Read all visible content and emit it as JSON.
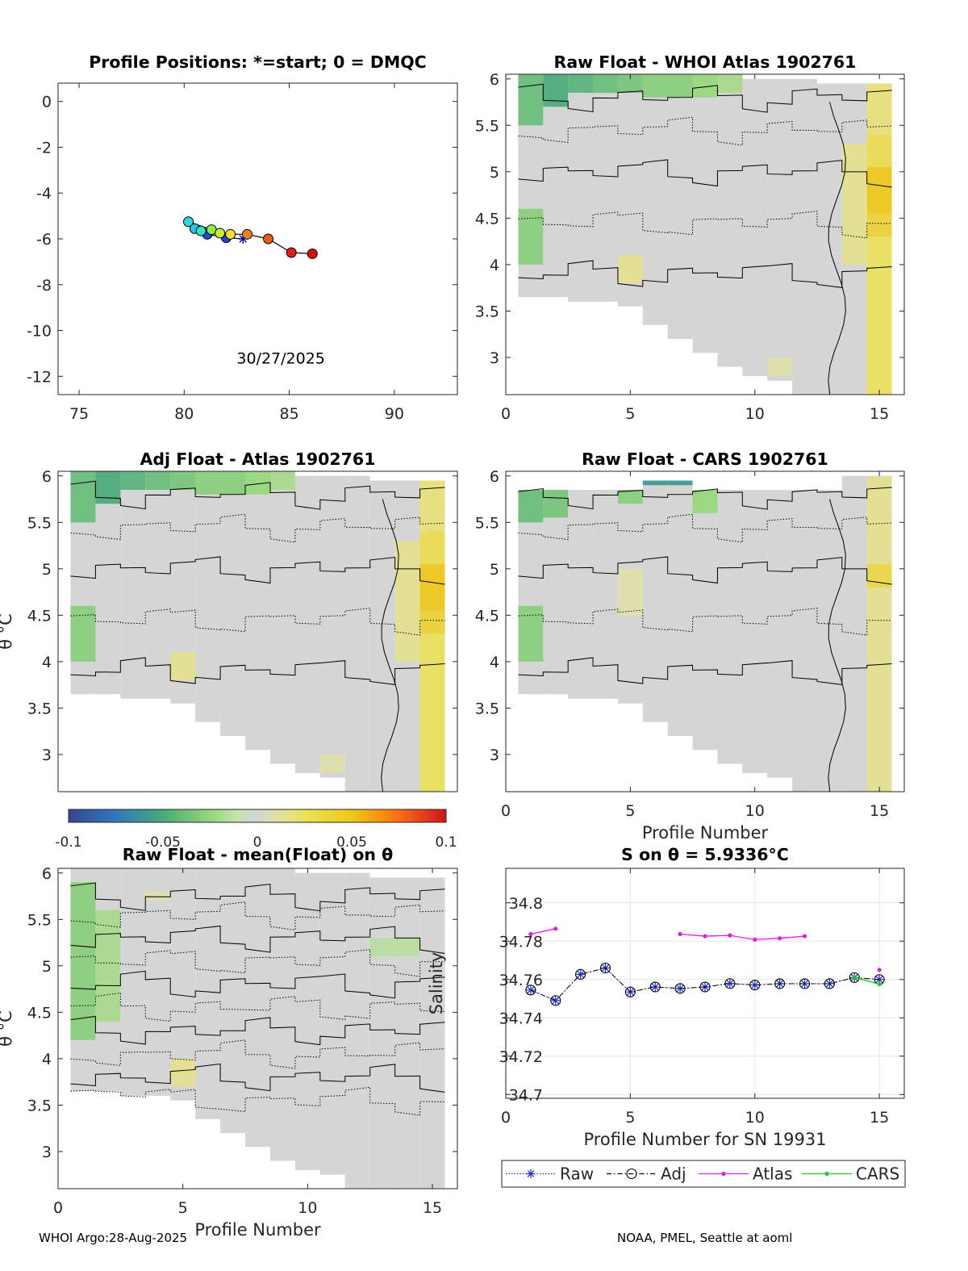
{
  "footer": {
    "left": "WHOI Argo:28-Aug-2025",
    "right": "NOAA, PMEL, Seattle at aoml"
  },
  "colors": {
    "raw": "#1f2fd6",
    "adj": "#000000",
    "atlas": "#e619e6",
    "cars": "#1acc1a",
    "gray": "#d5d5d5"
  },
  "chart_data": [
    {
      "id": "positions",
      "type": "scatter",
      "title": "Profile Positions: *=start; 0 = DMQC",
      "xlabel": "",
      "ylabel": "",
      "xlim": [
        74,
        93
      ],
      "ylim": [
        -12.8,
        0.8
      ],
      "xticks": [
        75,
        80,
        85,
        90
      ],
      "yticks": [
        0,
        -2,
        -4,
        -6,
        -8,
        -10,
        -12
      ],
      "annotation": "30/27/2025",
      "points": [
        {
          "lon": 82.8,
          "lat": -6.0,
          "color": "#0000cc",
          "marker": "star"
        },
        {
          "lon": 82.0,
          "lat": -5.95,
          "color": "#1f3fe0"
        },
        {
          "lon": 81.1,
          "lat": -5.8,
          "color": "#1f4be0"
        },
        {
          "lon": 80.5,
          "lat": -5.55,
          "color": "#1ec8e8"
        },
        {
          "lon": 80.8,
          "lat": -5.65,
          "color": "#30e0c0"
        },
        {
          "lon": 80.2,
          "lat": -5.25,
          "color": "#28d8e8"
        },
        {
          "lon": 81.3,
          "lat": -5.6,
          "color": "#90ee40"
        },
        {
          "lon": 81.7,
          "lat": -5.75,
          "color": "#c8f030"
        },
        {
          "lon": 82.2,
          "lat": -5.8,
          "color": "#f0e030"
        },
        {
          "lon": 83.0,
          "lat": -5.8,
          "color": "#f08020"
        },
        {
          "lon": 84.0,
          "lat": -6.0,
          "color": "#ee5a10"
        },
        {
          "lon": 85.1,
          "lat": -6.6,
          "color": "#e02010"
        },
        {
          "lon": 86.1,
          "lat": -6.65,
          "color": "#d80c0c"
        }
      ]
    },
    {
      "id": "raw-atlas",
      "type": "heatmap",
      "title": "Raw Float - WHOI Atlas  1902761",
      "xlabel": "",
      "ylabel": "",
      "xlim": [
        0,
        16
      ],
      "ylim": [
        2.6,
        6.05
      ],
      "xticks": [
        0,
        5,
        10,
        15
      ],
      "yticks": [
        3,
        3.5,
        4,
        4.5,
        5,
        5.5,
        6
      ],
      "columns": [
        1,
        2,
        3,
        4,
        5,
        6,
        7,
        8,
        9,
        10,
        11,
        12,
        13,
        14,
        15
      ],
      "col_bottom": [
        3.65,
        3.65,
        3.6,
        3.6,
        3.55,
        3.35,
        3.2,
        3.05,
        2.9,
        2.8,
        2.75,
        2.6,
        2.6,
        2.6,
        2.6
      ],
      "col_top": [
        6.05,
        6.05,
        6.05,
        6.05,
        6.05,
        6.05,
        6.05,
        6.05,
        6.05,
        6.0,
        6.0,
        6.0,
        5.95,
        5.95,
        5.95
      ],
      "features": [
        {
          "col": 15,
          "from": 4.55,
          "to": 5.05,
          "value": 0.05
        },
        {
          "col": 15,
          "from": 4.3,
          "to": 4.55,
          "value": 0.04
        },
        {
          "col": 15,
          "from": 5.05,
          "to": 5.4,
          "value": 0.03
        },
        {
          "col": 15,
          "from": 2.6,
          "to": 4.3,
          "value": 0.025
        },
        {
          "col": 15,
          "from": 5.4,
          "to": 5.95,
          "value": 0.02
        },
        {
          "col": 14,
          "from": 4.0,
          "to": 5.3,
          "value": 0.015
        },
        {
          "col": 1,
          "from": 5.5,
          "to": 6.05,
          "value": -0.04
        },
        {
          "col": 2,
          "from": 5.7,
          "to": 6.05,
          "value": -0.05
        },
        {
          "col": 3,
          "from": 5.85,
          "to": 6.05,
          "value": -0.045
        },
        {
          "col": 4,
          "from": 5.85,
          "to": 6.05,
          "value": -0.04
        },
        {
          "col": 5,
          "from": 5.85,
          "to": 6.05,
          "value": -0.035
        },
        {
          "col": 6,
          "from": 5.8,
          "to": 6.05,
          "value": -0.03
        },
        {
          "col": 7,
          "from": 5.8,
          "to": 6.05,
          "value": -0.03
        },
        {
          "col": 8,
          "from": 5.8,
          "to": 6.05,
          "value": -0.025
        },
        {
          "col": 9,
          "from": 5.85,
          "to": 6.05,
          "value": -0.02
        },
        {
          "col": 1,
          "from": 4.0,
          "to": 4.6,
          "value": -0.03
        },
        {
          "col": 5,
          "from": 3.8,
          "to": 4.1,
          "value": 0.015
        },
        {
          "col": 11,
          "from": 2.8,
          "to": 3.0,
          "value": 0.01
        }
      ]
    },
    {
      "id": "adj-atlas",
      "type": "heatmap",
      "title": "Adj Float - Atlas  1902761",
      "xlabel": "",
      "ylabel": "θ °C",
      "xlim": [
        0,
        16
      ],
      "ylim": [
        2.6,
        6.05
      ],
      "xticks": [],
      "yticks": [
        3,
        3.5,
        4,
        4.5,
        5,
        5.5,
        6
      ],
      "columns": [
        1,
        2,
        3,
        4,
        5,
        6,
        7,
        8,
        9,
        10,
        11,
        12,
        13,
        14,
        15
      ],
      "col_bottom": [
        3.65,
        3.65,
        3.6,
        3.6,
        3.55,
        3.35,
        3.2,
        3.05,
        2.9,
        2.8,
        2.75,
        2.6,
        2.6,
        2.6,
        2.6
      ],
      "col_top": [
        6.05,
        6.05,
        6.05,
        6.05,
        6.05,
        6.05,
        6.05,
        6.05,
        6.05,
        6.0,
        6.0,
        6.0,
        5.95,
        5.95,
        5.95
      ],
      "features": [
        {
          "col": 15,
          "from": 4.55,
          "to": 5.05,
          "value": 0.05
        },
        {
          "col": 15,
          "from": 4.3,
          "to": 4.55,
          "value": 0.04
        },
        {
          "col": 15,
          "from": 5.05,
          "to": 5.4,
          "value": 0.03
        },
        {
          "col": 15,
          "from": 2.6,
          "to": 4.3,
          "value": 0.025
        },
        {
          "col": 15,
          "from": 5.4,
          "to": 5.95,
          "value": 0.02
        },
        {
          "col": 14,
          "from": 4.0,
          "to": 5.3,
          "value": 0.015
        },
        {
          "col": 1,
          "from": 5.5,
          "to": 6.05,
          "value": -0.04
        },
        {
          "col": 2,
          "from": 5.7,
          "to": 6.05,
          "value": -0.05
        },
        {
          "col": 3,
          "from": 5.85,
          "to": 6.05,
          "value": -0.045
        },
        {
          "col": 4,
          "from": 5.85,
          "to": 6.05,
          "value": -0.04
        },
        {
          "col": 5,
          "from": 5.85,
          "to": 6.05,
          "value": -0.035
        },
        {
          "col": 6,
          "from": 5.8,
          "to": 6.05,
          "value": -0.03
        },
        {
          "col": 7,
          "from": 5.8,
          "to": 6.05,
          "value": -0.03
        },
        {
          "col": 8,
          "from": 5.8,
          "to": 6.05,
          "value": -0.025
        },
        {
          "col": 9,
          "from": 5.85,
          "to": 6.05,
          "value": -0.02
        },
        {
          "col": 1,
          "from": 4.0,
          "to": 4.6,
          "value": -0.03
        },
        {
          "col": 5,
          "from": 3.8,
          "to": 4.1,
          "value": 0.015
        },
        {
          "col": 11,
          "from": 2.8,
          "to": 3.0,
          "value": 0.01
        }
      ]
    },
    {
      "id": "raw-cars",
      "type": "heatmap",
      "title": "Raw Float - CARS  1902761",
      "xlabel": "Profile Number",
      "ylabel": "",
      "xlim": [
        0,
        16
      ],
      "ylim": [
        2.6,
        6.05
      ],
      "xticks": [
        0,
        5,
        10,
        15
      ],
      "yticks": [
        3,
        3.5,
        4,
        4.5,
        5,
        5.5,
        6
      ],
      "columns": [
        1,
        2,
        3,
        4,
        5,
        6,
        7,
        8,
        9,
        10,
        11,
        12,
        13,
        14,
        15
      ],
      "col_bottom": [
        3.65,
        3.65,
        3.6,
        3.6,
        3.55,
        3.35,
        3.2,
        3.05,
        2.9,
        2.8,
        2.75,
        2.6,
        2.6,
        2.6,
        2.6
      ],
      "col_top": [
        5.85,
        5.85,
        5.85,
        5.85,
        5.85,
        5.95,
        5.95,
        5.85,
        5.85,
        5.85,
        5.85,
        5.85,
        5.85,
        6.0,
        6.0
      ],
      "features": [
        {
          "col": 1,
          "from": 5.5,
          "to": 5.85,
          "value": -0.04
        },
        {
          "col": 2,
          "from": 5.55,
          "to": 5.85,
          "value": -0.035
        },
        {
          "col": 6,
          "from": 5.9,
          "to": 5.95,
          "value": -0.06
        },
        {
          "col": 7,
          "from": 5.9,
          "to": 5.95,
          "value": -0.06
        },
        {
          "col": 5,
          "from": 5.7,
          "to": 5.85,
          "value": -0.03
        },
        {
          "col": 8,
          "from": 5.6,
          "to": 5.85,
          "value": -0.025
        },
        {
          "col": 1,
          "from": 4.0,
          "to": 4.6,
          "value": -0.03
        },
        {
          "col": 15,
          "from": 4.8,
          "to": 5.05,
          "value": 0.035
        },
        {
          "col": 15,
          "from": 2.6,
          "to": 4.8,
          "value": 0.015
        },
        {
          "col": 15,
          "from": 5.05,
          "to": 6.0,
          "value": 0.015
        },
        {
          "col": 5,
          "from": 4.5,
          "to": 5.0,
          "value": 0.01
        }
      ]
    },
    {
      "id": "raw-mean",
      "type": "heatmap",
      "title": "Raw Float - mean(Float) on θ",
      "xlabel": "Profile Number",
      "ylabel": "θ °C",
      "xlim": [
        0,
        16
      ],
      "ylim": [
        2.6,
        6.05
      ],
      "xticks": [
        0,
        5,
        10,
        15
      ],
      "yticks": [
        3,
        3.5,
        4,
        4.5,
        5,
        5.5,
        6
      ],
      "columns": [
        1,
        2,
        3,
        4,
        5,
        6,
        7,
        8,
        9,
        10,
        11,
        12,
        13,
        14,
        15
      ],
      "col_bottom": [
        3.65,
        3.65,
        3.6,
        3.6,
        3.55,
        3.35,
        3.2,
        3.05,
        2.9,
        2.8,
        2.75,
        2.6,
        2.6,
        2.6,
        2.6
      ],
      "col_top": [
        6.05,
        6.05,
        6.05,
        6.05,
        6.05,
        6.05,
        6.05,
        6.05,
        6.05,
        6.0,
        6.0,
        6.0,
        5.95,
        5.95,
        5.95
      ],
      "features": [
        {
          "col": 1,
          "from": 4.2,
          "to": 5.9,
          "value": -0.03
        },
        {
          "col": 2,
          "from": 4.4,
          "to": 5.6,
          "value": -0.02
        },
        {
          "col": 4,
          "from": 5.7,
          "to": 5.8,
          "value": 0.01
        },
        {
          "col": 5,
          "from": 3.7,
          "to": 4.0,
          "value": 0.015
        },
        {
          "col": 13,
          "from": 5.1,
          "to": 5.3,
          "value": -0.015
        },
        {
          "col": 14,
          "from": 5.1,
          "to": 5.3,
          "value": -0.015
        }
      ]
    },
    {
      "id": "salinity",
      "type": "line",
      "title": "S on θ = 5.9336°C",
      "xlabel": "Profile Number for SN 19931",
      "ylabel": "Salinity",
      "xlim": [
        0,
        16
      ],
      "ylim": [
        34.698,
        34.818
      ],
      "xticks": [
        0,
        5,
        10,
        15
      ],
      "yticks": [
        34.7,
        34.72,
        34.74,
        34.76,
        34.78,
        34.8
      ],
      "grid": true,
      "legend": "bottom-outside",
      "series": [
        {
          "name": "Raw",
          "x": [
            1,
            2,
            3,
            4,
            5,
            6,
            7,
            8,
            9,
            10,
            11,
            12,
            13,
            14,
            15
          ],
          "values": [
            34.7545,
            34.749,
            34.7627,
            34.766,
            34.7535,
            34.7561,
            34.7553,
            34.7561,
            34.7579,
            34.7571,
            34.7578,
            34.7578,
            34.7578,
            34.761,
            34.76
          ]
        },
        {
          "name": "Adj",
          "x": [
            1,
            2,
            3,
            4,
            5,
            6,
            7,
            8,
            9,
            10,
            11,
            12,
            13,
            14,
            15
          ],
          "values": [
            34.7545,
            34.749,
            34.7627,
            34.766,
            34.7535,
            34.7561,
            34.7553,
            34.7561,
            34.7579,
            34.7571,
            34.7578,
            34.7578,
            34.7578,
            34.761,
            34.76
          ]
        },
        {
          "name": "Atlas",
          "segments": [
            {
              "x": [
                1,
                2
              ],
              "values": [
                34.7837,
                34.7865
              ]
            },
            {
              "x": [
                7,
                8,
                9,
                10,
                11,
                12
              ],
              "values": [
                34.7837,
                34.7826,
                34.783,
                34.7808,
                34.7815,
                34.7826
              ]
            },
            {
              "x": [
                15
              ],
              "values": [
                34.765
              ]
            }
          ]
        },
        {
          "name": "CARS",
          "x": [
            14,
            15
          ],
          "values": [
            34.7612,
            34.7575
          ]
        }
      ]
    }
  ],
  "colorbar": {
    "min": -0.1,
    "max": 0.1,
    "ticks": [
      "-0.1",
      "-0.05",
      "0",
      "0.05",
      "0.1"
    ]
  }
}
